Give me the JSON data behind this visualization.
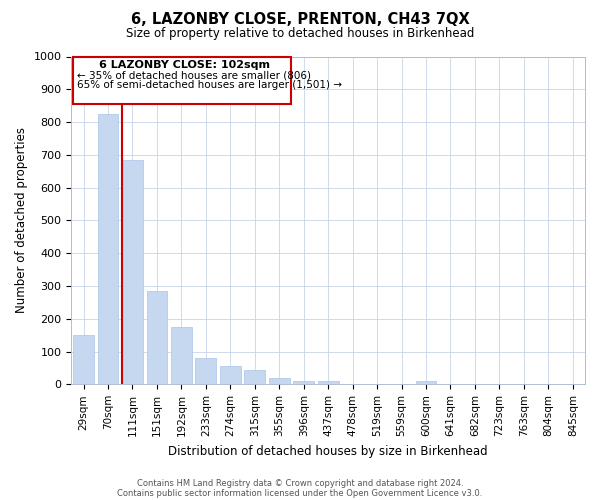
{
  "title": "6, LAZONBY CLOSE, PRENTON, CH43 7QX",
  "subtitle": "Size of property relative to detached houses in Birkenhead",
  "xlabel": "Distribution of detached houses by size in Birkenhead",
  "ylabel": "Number of detached properties",
  "bar_labels": [
    "29sqm",
    "70sqm",
    "111sqm",
    "151sqm",
    "192sqm",
    "233sqm",
    "274sqm",
    "315sqm",
    "355sqm",
    "396sqm",
    "437sqm",
    "478sqm",
    "519sqm",
    "559sqm",
    "600sqm",
    "641sqm",
    "682sqm",
    "723sqm",
    "763sqm",
    "804sqm",
    "845sqm"
  ],
  "bar_values": [
    150,
    825,
    685,
    285,
    175,
    80,
    55,
    45,
    20,
    10,
    10,
    0,
    0,
    0,
    10,
    0,
    0,
    0,
    0,
    0,
    0
  ],
  "bar_color": "#c5d8f0",
  "bar_edge_color": "#a8c4e8",
  "property_line_index": 2,
  "property_label": "6 LAZONBY CLOSE: 102sqm",
  "annotation_line1": "← 35% of detached houses are smaller (806)",
  "annotation_line2": "65% of semi-detached houses are larger (1,501) →",
  "vline_color": "#cc0000",
  "box_color": "#cc0000",
  "ylim": [
    0,
    1000
  ],
  "yticks": [
    0,
    100,
    200,
    300,
    400,
    500,
    600,
    700,
    800,
    900,
    1000
  ],
  "footer1": "Contains HM Land Registry data © Crown copyright and database right 2024.",
  "footer2": "Contains public sector information licensed under the Open Government Licence v3.0."
}
